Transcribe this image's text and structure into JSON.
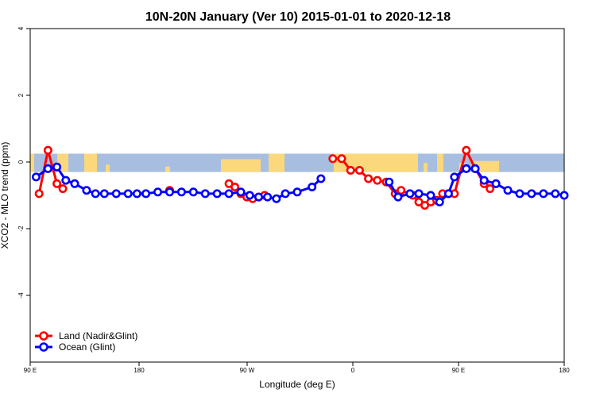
{
  "chart_data": {
    "type": "line",
    "title": "10N-20N January (Ver 10)   2015-01-01 to 2020-12-18",
    "xlabel": "Longitude (deg E)",
    "ylabel": "XCO2 - MLO trend (ppm)",
    "x_axis": {
      "domain": [
        90,
        450
      ],
      "ticks": [
        {
          "value": 90,
          "label": "90 E"
        },
        {
          "value": 180,
          "label": "180"
        },
        {
          "value": 270,
          "label": "90 W"
        },
        {
          "value": 360,
          "label": "0"
        },
        {
          "value": 450,
          "label": "90 E"
        },
        {
          "value": 540,
          "label": "180"
        }
      ]
    },
    "y_axis": {
      "ylim": [
        -6,
        4
      ],
      "ticks": [
        {
          "value": 4,
          "label": "4"
        },
        {
          "value": 2,
          "label": "2"
        },
        {
          "value": 0,
          "label": "0"
        },
        {
          "value": -2,
          "label": "-2"
        },
        {
          "value": -4,
          "label": "-4"
        }
      ]
    },
    "background_map": {
      "latitude_band": "10N-20N",
      "y_range": [
        -0.3,
        0.25
      ],
      "ocean_color": "#A7BEE0",
      "land_color": "#FBD87B"
    },
    "legend": {
      "position": "bottom-left"
    },
    "series": [
      {
        "name": "Land (Nadir&Glint)",
        "color": "#FF0000",
        "segments": [
          {
            "x": [
              97.5,
              105,
              112.5,
              117.5
            ],
            "y": [
              -0.95,
              0.35,
              -0.65,
              -0.8
            ]
          },
          {
            "x": [
              207.5
            ],
            "y": [
              -0.85
            ]
          },
          {
            "x": [
              257.5,
              262.5,
              267.5,
              272.5,
              277.5,
              282.5,
              287.5
            ],
            "y": [
              -0.65,
              -0.75,
              -0.95,
              -1.05,
              -1.1,
              -1.05,
              -1.0
            ]
          },
          {
            "x": [
              345,
              352.5,
              360,
              367.5,
              375,
              382.5,
              390,
              397.5,
              402.5,
              412.5,
              417.5,
              422.5,
              427.5,
              432.5,
              437.5,
              442.5,
              447.5,
              457.5,
              465,
              472.5,
              477.5
            ],
            "y": [
              0.1,
              0.1,
              -0.25,
              -0.25,
              -0.5,
              -0.55,
              -0.6,
              -0.95,
              -0.85,
              -1.0,
              -1.2,
              -1.3,
              -1.2,
              -1.15,
              -0.95,
              -0.95,
              -0.95,
              0.35,
              -0.2,
              -0.65,
              -0.8
            ]
          }
        ]
      },
      {
        "name": "Ocean (Glint)",
        "color": "#0000FF",
        "segments": [
          {
            "x": [
              95,
              105,
              112.5,
              120,
              127.5,
              137.5,
              145,
              152.5,
              162.5,
              172.5,
              180,
              187.5,
              197.5,
              207.5,
              217.5,
              227.5,
              237.5,
              247.5,
              257.5,
              267.5,
              275,
              282.5,
              290,
              297.5,
              305,
              315,
              327.5,
              335
            ],
            "y": [
              -0.45,
              -0.2,
              -0.15,
              -0.55,
              -0.65,
              -0.85,
              -0.95,
              -0.95,
              -0.95,
              -0.95,
              -0.95,
              -0.95,
              -0.9,
              -0.9,
              -0.9,
              -0.9,
              -0.95,
              -0.95,
              -0.95,
              -0.9,
              -1.0,
              -1.05,
              -1.05,
              -1.1,
              -0.95,
              -0.9,
              -0.75,
              -0.5
            ]
          },
          {
            "x": [
              392.5,
              400,
              410,
              417.5,
              427.5,
              435,
              442.5,
              447.5,
              457.5,
              465,
              472.5,
              482.5,
              492.5,
              502.5,
              512.5,
              522.5,
              532.5,
              540
            ],
            "y": [
              -0.6,
              -1.05,
              -0.95,
              -0.95,
              -1.0,
              -1.2,
              -0.95,
              -0.45,
              -0.2,
              -0.2,
              -0.55,
              -0.65,
              -0.85,
              -0.95,
              -0.95,
              -0.95,
              -0.95,
              -1.0
            ]
          }
        ]
      }
    ]
  }
}
